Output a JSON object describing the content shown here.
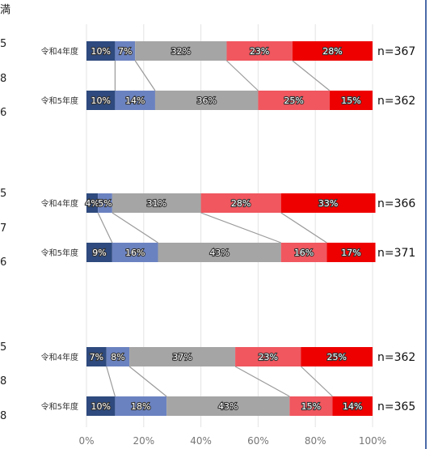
{
  "chart_data": {
    "type": "bar",
    "orientation": "horizontal",
    "stacked": "percent",
    "xlim": [
      0,
      100
    ],
    "x_ticks": [
      "0%",
      "20%",
      "40%",
      "60%",
      "80%",
      "100%"
    ],
    "grid": true,
    "series_colors": [
      "#2e4a7e",
      "#6b82c0",
      "#a5a5a5",
      "#f0575f",
      "#ee0000"
    ],
    "panels": [
      {
        "edge_text": [
          "満",
          "5",
          "8",
          "6"
        ],
        "bars": [
          {
            "category": "令和4年度",
            "values": [
              10,
              7,
              32,
              23,
              28
            ],
            "labels": [
              "10%",
              "7%",
              "32%",
              "23%",
              "28%"
            ],
            "n": "n=367"
          },
          {
            "category": "令和5年度",
            "values": [
              10,
              14,
              36,
              25,
              15
            ],
            "labels": [
              "10%",
              "14%",
              "36%",
              "25%",
              "15%"
            ],
            "n": "n=362"
          }
        ]
      },
      {
        "edge_text": [
          "5",
          "7",
          "6"
        ],
        "bars": [
          {
            "category": "令和4年度",
            "values": [
              4,
              5,
              31,
              28,
              33
            ],
            "labels": [
              "4%",
              "5%",
              "31%",
              "28%",
              "33%"
            ],
            "n": "n=366"
          },
          {
            "category": "令和5年度",
            "values": [
              9,
              16,
              43,
              16,
              17
            ],
            "labels": [
              "9%",
              "16%",
              "43%",
              "16%",
              "17%"
            ],
            "n": "n=371"
          }
        ]
      },
      {
        "edge_text": [
          "5",
          "8",
          "8"
        ],
        "bars": [
          {
            "category": "令和4年度",
            "values": [
              7,
              8,
              37,
              23,
              25
            ],
            "labels": [
              "7%",
              "8%",
              "37%",
              "23%",
              "25%"
            ],
            "n": "n=362"
          },
          {
            "category": "令和5年度",
            "values": [
              10,
              18,
              43,
              15,
              14
            ],
            "labels": [
              "10%",
              "18%",
              "43%",
              "15%",
              "14%"
            ],
            "n": "n=365"
          }
        ]
      }
    ]
  }
}
